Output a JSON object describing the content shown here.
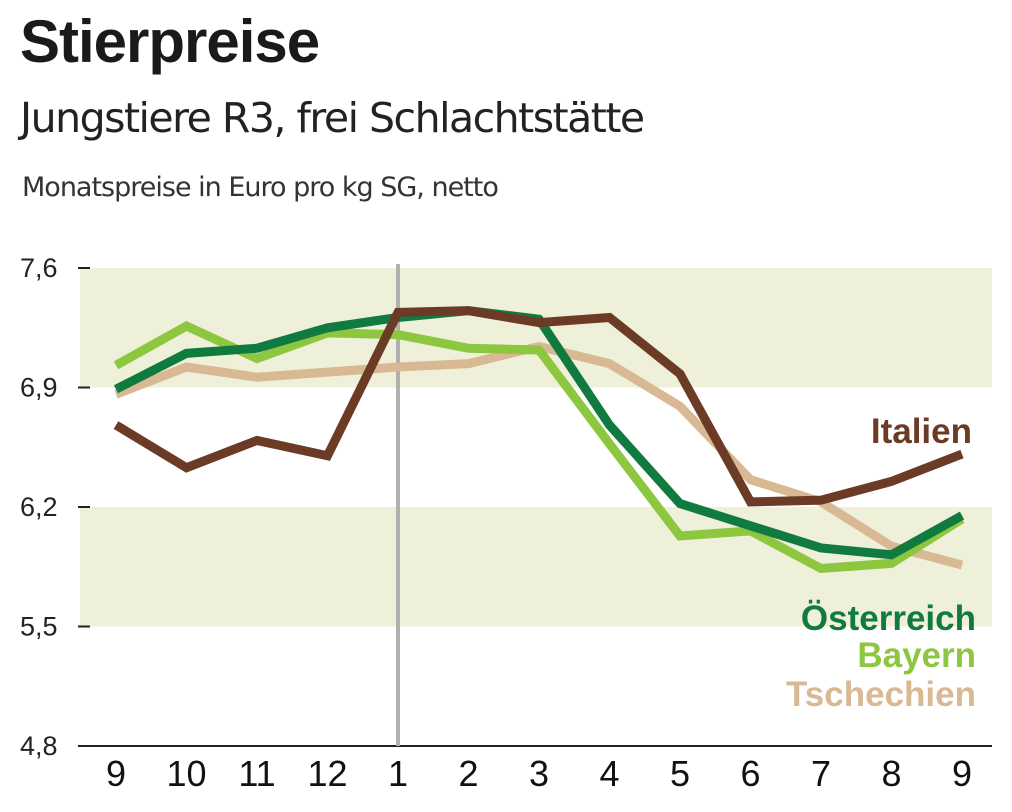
{
  "chart_data": {
    "type": "line",
    "title": "Stierpreise",
    "subtitle": "Jungstiere R3, frei Schlachtstätte",
    "ylabel": "Monatspreise in Euro pro kg SG, netto",
    "categories": [
      "9",
      "10",
      "11",
      "12",
      "1",
      "2",
      "3",
      "4",
      "5",
      "6",
      "7",
      "8",
      "9"
    ],
    "yticks": [
      "7,6",
      "6,9",
      "6,2",
      "5,5",
      "4,8"
    ],
    "ylim": [
      4.8,
      7.6
    ],
    "grid": "alternating horizontal bands",
    "series": [
      {
        "name": "Tschechien",
        "color": "#d8b993",
        "values": [
          6.86,
          7.02,
          6.96,
          6.99,
          7.02,
          7.04,
          7.14,
          7.04,
          6.79,
          6.36,
          6.23,
          5.97,
          5.86
        ]
      },
      {
        "name": "Bayern",
        "color": "#8dc63f",
        "values": [
          7.03,
          7.26,
          7.07,
          7.22,
          7.21,
          7.13,
          7.12,
          6.57,
          6.03,
          6.06,
          5.84,
          5.87,
          6.13
        ]
      },
      {
        "name": "Österreich",
        "color": "#117a3f",
        "values": [
          6.89,
          7.1,
          7.13,
          7.25,
          7.31,
          7.35,
          7.3,
          6.68,
          6.22,
          6.09,
          5.96,
          5.92,
          6.15
        ]
      },
      {
        "name": "Italien",
        "color": "#6b3b26",
        "values": [
          6.68,
          6.43,
          6.59,
          6.5,
          7.34,
          7.35,
          7.28,
          7.31,
          6.98,
          6.23,
          6.24,
          6.35,
          6.51
        ]
      }
    ],
    "labels": {
      "italien": "Italien",
      "oesterreich": "Österreich",
      "bayern": "Bayern",
      "tschechien": "Tschechien"
    }
  }
}
